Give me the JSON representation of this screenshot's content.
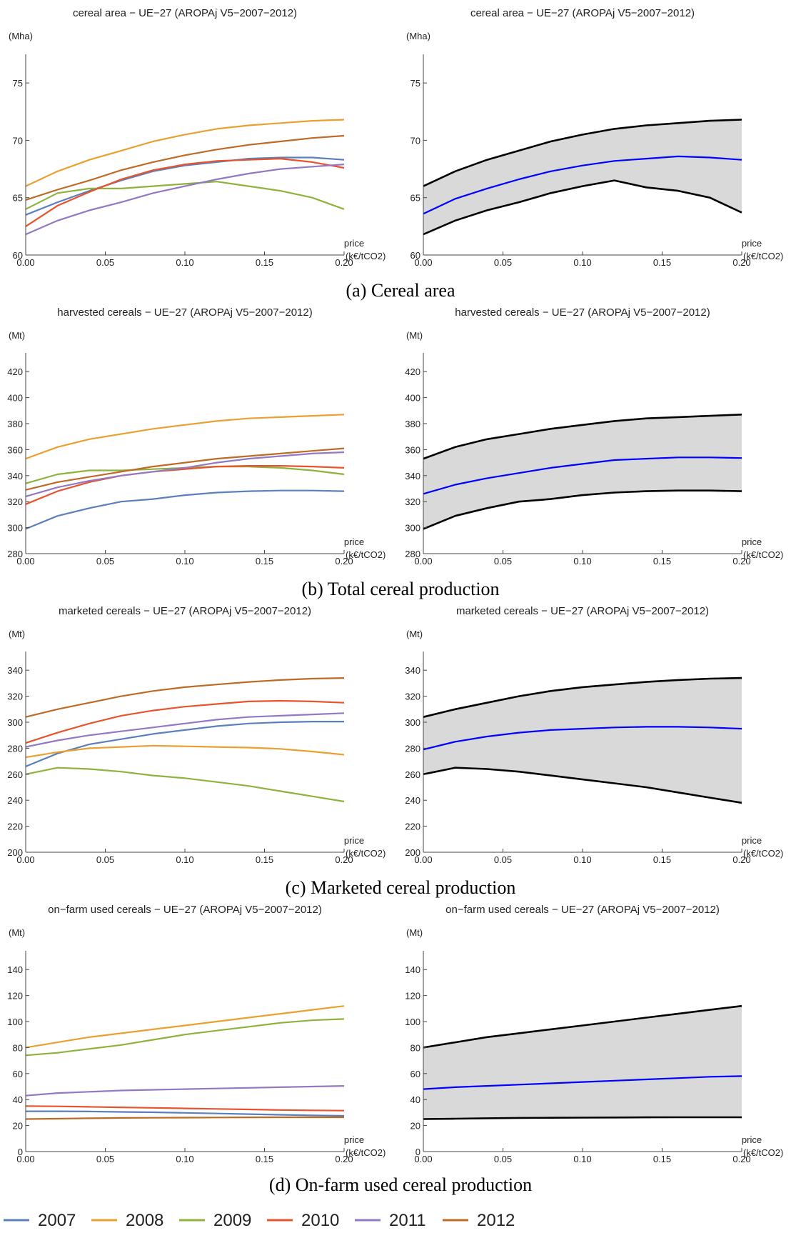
{
  "captions": [
    "(a) Cereal area",
    "(b) Total cereal production",
    "(c) Marketed cereal production",
    "(d) On-farm used cereal production"
  ],
  "legend": [
    {
      "name": "2007",
      "color": "#5b7fbd"
    },
    {
      "name": "2008",
      "color": "#e9a030"
    },
    {
      "name": "2009",
      "color": "#8db33c"
    },
    {
      "name": "2010",
      "color": "#e7532c"
    },
    {
      "name": "2011",
      "color": "#9378c3"
    },
    {
      "name": "2012",
      "color": "#bf6a24"
    }
  ],
  "chart_data": [
    {
      "type": "line",
      "panel": "a-left",
      "title": "cereal area − UE−27 (AROPAj V5−2007−2012)",
      "ylabel": "(Mha)",
      "xlabel": "price\n(k€/tCO2)",
      "xlim": [
        0,
        0.2
      ],
      "ylim": [
        60,
        77
      ],
      "xticks": [
        0.0,
        0.05,
        0.1,
        0.15,
        0.2
      ],
      "xtick_labels": [
        "0.00",
        "0.05",
        "0.10",
        "0.15",
        "0.20"
      ],
      "yticks": [
        60,
        65,
        70,
        75
      ],
      "ytick_labels": [
        "60",
        "65",
        "70",
        "75"
      ],
      "x": [
        0.0,
        0.02,
        0.04,
        0.06,
        0.08,
        0.1,
        0.12,
        0.14,
        0.16,
        0.18,
        0.2
      ],
      "series": [
        {
          "name": "2007",
          "color": "#5b7fbd",
          "values": [
            63.5,
            64.6,
            65.6,
            66.5,
            67.3,
            67.8,
            68.1,
            68.4,
            68.5,
            68.5,
            68.3
          ]
        },
        {
          "name": "2008",
          "color": "#e9a030",
          "values": [
            66.0,
            67.3,
            68.3,
            69.1,
            69.9,
            70.5,
            71.0,
            71.3,
            71.5,
            71.7,
            71.8
          ]
        },
        {
          "name": "2009",
          "color": "#8db33c",
          "values": [
            64.0,
            65.4,
            65.8,
            65.8,
            66.0,
            66.2,
            66.4,
            66.0,
            65.6,
            65.0,
            64.0
          ]
        },
        {
          "name": "2010",
          "color": "#e7532c",
          "values": [
            62.5,
            64.3,
            65.5,
            66.6,
            67.4,
            67.9,
            68.2,
            68.3,
            68.4,
            68.1,
            67.6
          ]
        },
        {
          "name": "2011",
          "color": "#9378c3",
          "values": [
            61.8,
            63.0,
            63.9,
            64.6,
            65.4,
            66.0,
            66.6,
            67.1,
            67.5,
            67.7,
            67.9
          ]
        },
        {
          "name": "2012",
          "color": "#bf6a24",
          "values": [
            64.8,
            65.7,
            66.5,
            67.4,
            68.1,
            68.7,
            69.2,
            69.6,
            69.9,
            70.2,
            70.4
          ]
        }
      ]
    },
    {
      "type": "area",
      "panel": "a-right",
      "title": "cereal area − UE−27 (AROPAj V5−2007−2012)",
      "ylabel": "(Mha)",
      "xlabel": "price\n(k€/tCO2)",
      "xlim": [
        0,
        0.2
      ],
      "ylim": [
        60,
        77
      ],
      "xticks": [
        0.0,
        0.05,
        0.1,
        0.15,
        0.2
      ],
      "xtick_labels": [
        "0.00",
        "0.05",
        "0.10",
        "0.15",
        "0.20"
      ],
      "yticks": [
        60,
        65,
        70,
        75
      ],
      "ytick_labels": [
        "60",
        "65",
        "70",
        "75"
      ],
      "x": [
        0.0,
        0.02,
        0.04,
        0.06,
        0.08,
        0.1,
        0.12,
        0.14,
        0.16,
        0.18,
        0.2
      ],
      "band": {
        "upper": [
          66.0,
          67.3,
          68.3,
          69.1,
          69.9,
          70.5,
          71.0,
          71.3,
          71.5,
          71.7,
          71.8
        ],
        "lower": [
          61.8,
          63.0,
          63.9,
          64.6,
          65.4,
          66.0,
          66.5,
          65.9,
          65.6,
          65.0,
          63.7
        ],
        "fill": "#d9d9d9",
        "edge": "#000000"
      },
      "mean": {
        "values": [
          63.6,
          64.9,
          65.8,
          66.6,
          67.3,
          67.8,
          68.2,
          68.4,
          68.6,
          68.5,
          68.3
        ],
        "color": "#0000ff"
      }
    },
    {
      "type": "line",
      "panel": "b-left",
      "title": "harvested cereals − UE−27 (AROPAj V5−2007−2012)",
      "ylabel": "(Mt)",
      "xlabel": "price\n(k€/tCO2)",
      "xlim": [
        0,
        0.2
      ],
      "ylim": [
        280,
        430
      ],
      "xticks": [
        0.0,
        0.05,
        0.1,
        0.15,
        0.2
      ],
      "xtick_labels": [
        "0.00",
        "0.05",
        "0.10",
        "0.15",
        "0.20"
      ],
      "yticks": [
        280,
        300,
        320,
        340,
        360,
        380,
        400,
        420
      ],
      "ytick_labels": [
        "280",
        "300",
        "320",
        "340",
        "360",
        "380",
        "400",
        "420"
      ],
      "x": [
        0.0,
        0.02,
        0.04,
        0.06,
        0.08,
        0.1,
        0.12,
        0.14,
        0.16,
        0.18,
        0.2
      ],
      "series": [
        {
          "name": "2007",
          "color": "#5b7fbd",
          "values": [
            299,
            309,
            315,
            320,
            322,
            325,
            327,
            328,
            328.5,
            328.5,
            328
          ]
        },
        {
          "name": "2008",
          "color": "#e9a030",
          "values": [
            353,
            362,
            368,
            372,
            376,
            379,
            382,
            384,
            385,
            386,
            387
          ]
        },
        {
          "name": "2009",
          "color": "#8db33c",
          "values": [
            334,
            341,
            344,
            344,
            345,
            346,
            347,
            347,
            346,
            344,
            341
          ]
        },
        {
          "name": "2010",
          "color": "#e7532c",
          "values": [
            318,
            328,
            335,
            340,
            343,
            345,
            347,
            347.5,
            347.5,
            347,
            346
          ]
        },
        {
          "name": "2011",
          "color": "#9378c3",
          "values": [
            324,
            331,
            336,
            340,
            343,
            346,
            350,
            353,
            355,
            357,
            358
          ]
        },
        {
          "name": "2012",
          "color": "#bf6a24",
          "values": [
            329,
            335,
            339,
            343,
            347,
            350,
            353,
            355,
            357,
            359,
            361
          ]
        }
      ]
    },
    {
      "type": "area",
      "panel": "b-right",
      "title": "harvested cereals − UE−27 (AROPAj V5−2007−2012)",
      "ylabel": "(Mt)",
      "xlabel": "price\n(k€/tCO2)",
      "xlim": [
        0,
        0.2
      ],
      "ylim": [
        280,
        430
      ],
      "xticks": [
        0.0,
        0.05,
        0.1,
        0.15,
        0.2
      ],
      "xtick_labels": [
        "0.00",
        "0.05",
        "0.10",
        "0.15",
        "0.20"
      ],
      "yticks": [
        280,
        300,
        320,
        340,
        360,
        380,
        400,
        420
      ],
      "ytick_labels": [
        "280",
        "300",
        "320",
        "340",
        "360",
        "380",
        "400",
        "420"
      ],
      "x": [
        0.0,
        0.02,
        0.04,
        0.06,
        0.08,
        0.1,
        0.12,
        0.14,
        0.16,
        0.18,
        0.2
      ],
      "band": {
        "upper": [
          353,
          362,
          368,
          372,
          376,
          379,
          382,
          384,
          385,
          386,
          387
        ],
        "lower": [
          299,
          309,
          315,
          320,
          322,
          325,
          327,
          328,
          328.5,
          328.5,
          328
        ],
        "fill": "#d9d9d9",
        "edge": "#000000"
      },
      "mean": {
        "values": [
          326,
          333,
          338,
          342,
          346,
          349,
          352,
          353,
          354,
          354,
          353.5
        ],
        "color": "#0000ff"
      }
    },
    {
      "type": "line",
      "panel": "c-left",
      "title": "marketed cereals − UE−27 (AROPAj V5−2007−2012)",
      "ylabel": "(Mt)",
      "xlabel": "price\n(k€/tCO2)",
      "xlim": [
        0,
        0.2
      ],
      "ylim": [
        200,
        350
      ],
      "xticks": [
        0.0,
        0.05,
        0.1,
        0.15,
        0.2
      ],
      "xtick_labels": [
        "0.00",
        "0.05",
        "0.10",
        "0.15",
        "0.20"
      ],
      "yticks": [
        200,
        220,
        240,
        260,
        280,
        300,
        320,
        340
      ],
      "ytick_labels": [
        "200",
        "220",
        "240",
        "260",
        "280",
        "300",
        "320",
        "340"
      ],
      "x": [
        0.0,
        0.02,
        0.04,
        0.06,
        0.08,
        0.1,
        0.12,
        0.14,
        0.16,
        0.18,
        0.2
      ],
      "series": [
        {
          "name": "2007",
          "color": "#5b7fbd",
          "values": [
            266,
            276,
            283,
            287,
            291,
            294,
            297,
            299,
            300,
            300.5,
            300.5
          ]
        },
        {
          "name": "2008",
          "color": "#e9a030",
          "values": [
            273,
            277,
            280,
            281,
            282,
            281.5,
            281,
            280.5,
            279.5,
            277.5,
            275
          ]
        },
        {
          "name": "2009",
          "color": "#8db33c",
          "values": [
            260,
            265,
            264,
            262,
            259,
            257,
            254,
            251,
            247,
            243,
            239
          ]
        },
        {
          "name": "2010",
          "color": "#e7532c",
          "values": [
            284,
            292,
            299,
            305,
            309,
            312,
            314,
            316,
            316.5,
            316,
            315
          ]
        },
        {
          "name": "2011",
          "color": "#9378c3",
          "values": [
            281,
            286,
            290,
            293,
            296,
            299,
            302,
            304,
            305,
            306,
            307
          ]
        },
        {
          "name": "2012",
          "color": "#bf6a24",
          "values": [
            304,
            310,
            315,
            320,
            324,
            327,
            329,
            331,
            332.5,
            333.5,
            334
          ]
        }
      ]
    },
    {
      "type": "area",
      "panel": "c-right",
      "title": "marketed cereals − UE−27 (AROPAj V5−2007−2012)",
      "ylabel": "(Mt)",
      "xlabel": "price\n(k€/tCO2)",
      "xlim": [
        0,
        0.2
      ],
      "ylim": [
        200,
        350
      ],
      "xticks": [
        0.0,
        0.05,
        0.1,
        0.15,
        0.2
      ],
      "xtick_labels": [
        "0.00",
        "0.05",
        "0.10",
        "0.15",
        "0.20"
      ],
      "yticks": [
        200,
        220,
        240,
        260,
        280,
        300,
        320,
        340
      ],
      "ytick_labels": [
        "200",
        "220",
        "240",
        "260",
        "280",
        "300",
        "320",
        "340"
      ],
      "x": [
        0.0,
        0.02,
        0.04,
        0.06,
        0.08,
        0.1,
        0.12,
        0.14,
        0.16,
        0.18,
        0.2
      ],
      "band": {
        "upper": [
          304,
          310,
          315,
          320,
          324,
          327,
          329,
          331,
          332.5,
          333.5,
          334
        ],
        "lower": [
          260,
          265,
          264,
          262,
          259,
          256,
          253,
          250,
          246,
          242,
          238
        ],
        "fill": "#d9d9d9",
        "edge": "#000000"
      },
      "mean": {
        "values": [
          279,
          285,
          289,
          292,
          294,
          295,
          296,
          296.5,
          296.5,
          296,
          295
        ],
        "color": "#0000ff"
      }
    },
    {
      "type": "line",
      "panel": "d-left",
      "title": "on−farm used cereals − UE−27 (AROPAj V5−2007−2012)",
      "ylabel": "(Mt)",
      "xlabel": "price\n(k€/tCO2)",
      "xlim": [
        0,
        0.2
      ],
      "ylim": [
        0,
        150
      ],
      "xticks": [
        0.0,
        0.05,
        0.1,
        0.15,
        0.2
      ],
      "xtick_labels": [
        "0.00",
        "0.05",
        "0.10",
        "0.15",
        "0.20"
      ],
      "yticks": [
        0,
        20,
        40,
        60,
        80,
        100,
        120,
        140
      ],
      "ytick_labels": [
        "0",
        "20",
        "40",
        "60",
        "80",
        "100",
        "120",
        "140"
      ],
      "x": [
        0.0,
        0.02,
        0.04,
        0.06,
        0.08,
        0.1,
        0.12,
        0.14,
        0.16,
        0.18,
        0.2
      ],
      "series": [
        {
          "name": "2007",
          "color": "#5b7fbd",
          "values": [
            31,
            31,
            30.8,
            30.5,
            30.2,
            29.8,
            29.3,
            28.8,
            28.3,
            27.8,
            27.5
          ]
        },
        {
          "name": "2008",
          "color": "#e9a030",
          "values": [
            80,
            84,
            88,
            91,
            94,
            97,
            100,
            103,
            106,
            109,
            112
          ]
        },
        {
          "name": "2009",
          "color": "#8db33c",
          "values": [
            74,
            76,
            79,
            82,
            86,
            90,
            93,
            96,
            99,
            101,
            102
          ]
        },
        {
          "name": "2010",
          "color": "#e7532c",
          "values": [
            35,
            34.8,
            34.4,
            34,
            33.6,
            33.2,
            32.8,
            32.4,
            32,
            31.7,
            31.5
          ]
        },
        {
          "name": "2011",
          "color": "#9378c3",
          "values": [
            43,
            45,
            46,
            47,
            47.5,
            48,
            48.5,
            49,
            49.5,
            50,
            50.5
          ]
        },
        {
          "name": "2012",
          "color": "#bf6a24",
          "values": [
            25,
            25.3,
            25.6,
            25.9,
            26,
            26.1,
            26.2,
            26.3,
            26.4,
            26.4,
            26.4
          ]
        }
      ]
    },
    {
      "type": "area",
      "panel": "d-right",
      "title": "on−farm used cereals − UE−27 (AROPAj V5−2007−2012)",
      "ylabel": "(Mt)",
      "xlabel": "price\n(k€/tCO2)",
      "xlim": [
        0,
        0.2
      ],
      "ylim": [
        0,
        150
      ],
      "xticks": [
        0.0,
        0.05,
        0.1,
        0.15,
        0.2
      ],
      "xtick_labels": [
        "0.00",
        "0.05",
        "0.10",
        "0.15",
        "0.20"
      ],
      "yticks": [
        0,
        20,
        40,
        60,
        80,
        100,
        120,
        140
      ],
      "ytick_labels": [
        "0",
        "20",
        "40",
        "60",
        "80",
        "100",
        "120",
        "140"
      ],
      "x": [
        0.0,
        0.02,
        0.04,
        0.06,
        0.08,
        0.1,
        0.12,
        0.14,
        0.16,
        0.18,
        0.2
      ],
      "band": {
        "upper": [
          80,
          84,
          88,
          91,
          94,
          97,
          100,
          103,
          106,
          109,
          112
        ],
        "lower": [
          25,
          25.3,
          25.6,
          25.9,
          26,
          26.1,
          26.2,
          26.3,
          26.4,
          26.4,
          26.4
        ],
        "fill": "#d9d9d9",
        "edge": "#000000"
      },
      "mean": {
        "values": [
          48,
          49.5,
          50.5,
          51.5,
          52.5,
          53.5,
          54.5,
          55.5,
          56.5,
          57.5,
          58
        ]
      }
    }
  ]
}
